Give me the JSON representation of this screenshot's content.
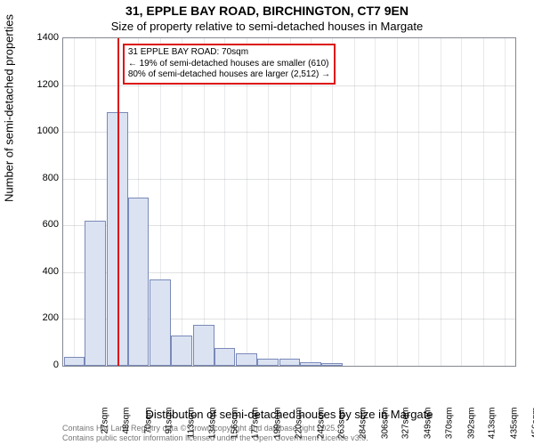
{
  "chart": {
    "type": "histogram",
    "title_line1": "31, EPPLE BAY ROAD, BIRCHINGTON, CT7 9EN",
    "title_line2": "Size of property relative to semi-detached houses in Margate",
    "ylabel": "Number of semi-detached properties",
    "xlabel": "Distribution of semi-detached houses by size in Margate",
    "background_color": "#ffffff",
    "plot_border_color": "#828790",
    "grid_color": "#828790",
    "bar_fill": "#dbe3f3",
    "bar_border": "#7a89b8",
    "marker_color": "#d11",
    "ylim": [
      0,
      1400
    ],
    "yticks": [
      0,
      200,
      400,
      600,
      800,
      1000,
      1200,
      1400
    ],
    "x_min": 16,
    "x_max": 467,
    "xtick_values": [
      27,
      48,
      70,
      91,
      113,
      134,
      156,
      177,
      199,
      220,
      242,
      263,
      284,
      306,
      327,
      349,
      370,
      392,
      413,
      435,
      456
    ],
    "xtick_labels": [
      "27sqm",
      "48sqm",
      "70sqm",
      "91sqm",
      "113sqm",
      "134sqm",
      "156sqm",
      "177sqm",
      "199sqm",
      "220sqm",
      "242sqm",
      "263sqm",
      "284sqm",
      "306sqm",
      "327sqm",
      "349sqm",
      "370sqm",
      "392sqm",
      "413sqm",
      "435sqm",
      "456sqm"
    ],
    "bars": [
      {
        "x": 27,
        "count": 40
      },
      {
        "x": 48,
        "count": 620
      },
      {
        "x": 70,
        "count": 1085
      },
      {
        "x": 91,
        "count": 720
      },
      {
        "x": 113,
        "count": 370
      },
      {
        "x": 134,
        "count": 130
      },
      {
        "x": 156,
        "count": 175
      },
      {
        "x": 177,
        "count": 75
      },
      {
        "x": 199,
        "count": 55
      },
      {
        "x": 220,
        "count": 30
      },
      {
        "x": 242,
        "count": 30
      },
      {
        "x": 263,
        "count": 15
      },
      {
        "x": 284,
        "count": 10
      },
      {
        "x": 306,
        "count": 0
      },
      {
        "x": 327,
        "count": 0
      },
      {
        "x": 349,
        "count": 0
      },
      {
        "x": 370,
        "count": 0
      },
      {
        "x": 392,
        "count": 0
      },
      {
        "x": 413,
        "count": 0
      },
      {
        "x": 435,
        "count": 0
      },
      {
        "x": 456,
        "count": 0
      }
    ],
    "bar_width_sqm": 21,
    "marker_x": 70,
    "callout": {
      "line1": "31 EPPLE BAY ROAD: 70sqm",
      "line2": "← 19% of semi-detached houses are smaller (610)",
      "line3": "80% of semi-detached houses are larger (2,512) →"
    },
    "footer_line1": "Contains HM Land Registry data © Crown copyright and database right 2025.",
    "footer_line2": "Contains public sector information licensed under the Open Government Licence v3.0.",
    "title_fontsize": 14,
    "subtitle_fontsize": 13,
    "axis_label_fontsize": 13,
    "tick_fontsize": 11,
    "callout_fontsize": 10,
    "footer_fontsize": 9
  }
}
